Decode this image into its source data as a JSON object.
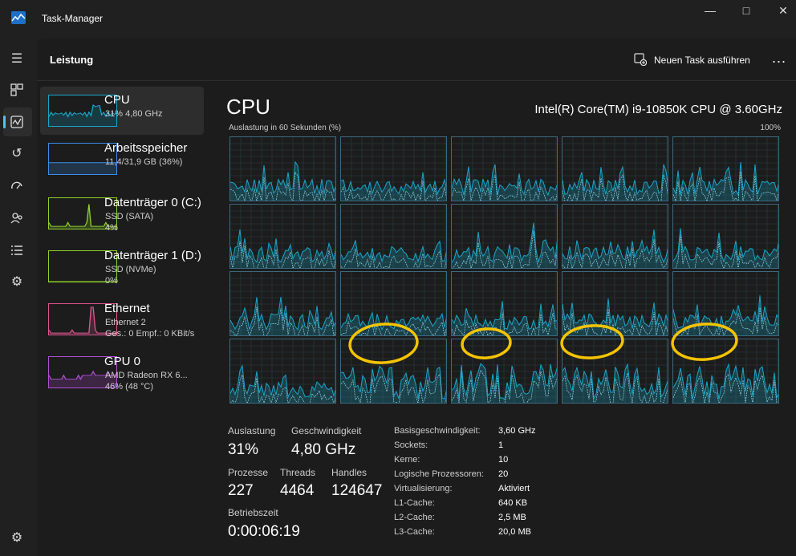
{
  "window": {
    "title": "Task-Manager",
    "controls": [
      "minimize",
      "maximize",
      "close"
    ]
  },
  "nav": {
    "items": [
      "menu-icon",
      "processes-icon",
      "performance-icon",
      "app-history-icon",
      "startup-apps-icon",
      "users-icon",
      "details-icon",
      "services-icon"
    ],
    "active": "performance-icon",
    "footer": "settings-icon",
    "accent": "#4cc2ff"
  },
  "header": {
    "title": "Leistung",
    "new_task_label": "Neuen Task ausführen",
    "more_label": "..."
  },
  "sidebar": {
    "items": [
      {
        "title": "CPU",
        "sub1": "31% 4,80 GHz",
        "sub2": "",
        "color": "#17a6c9"
      },
      {
        "title": "Arbeitsspeicher",
        "sub1": "11,4/31,9 GB (36%)",
        "sub2": "",
        "color": "#3c8ee8"
      },
      {
        "title": "Datenträger 0 (C:)",
        "sub1": "SSD (SATA)",
        "sub2": "4%",
        "color": "#8fd12a"
      },
      {
        "title": "Datenträger 1 (D:)",
        "sub1": "SSD (NVMe)",
        "sub2": "0%",
        "color": "#8fd12a"
      },
      {
        "title": "Ethernet",
        "sub1": "Ethernet 2",
        "sub2": "Ges.: 0 Empf.: 0 KBit/s",
        "color": "#e05590"
      },
      {
        "title": "GPU 0",
        "sub1": "AMD Radeon RX 6...",
        "sub2": "46% (48 °C)",
        "color": "#b14fd6"
      }
    ]
  },
  "cpu": {
    "title": "CPU",
    "model": "Intel(R) Core(TM) i9-10850K CPU @ 3.60GHz",
    "graph_caption": "Auslastung in 60 Sekunden (%)",
    "graph_max": "100%",
    "logical_processor_graphs": 20,
    "stats": {
      "auslastung_label": "Auslastung",
      "auslastung_value": "31%",
      "geschwindigkeit_label": "Geschwindigkeit",
      "geschwindigkeit_value": "4,80 GHz",
      "prozesse_label": "Prozesse",
      "prozesse_value": "227",
      "threads_label": "Threads",
      "threads_value": "4464",
      "handles_label": "Handles",
      "handles_value": "124647",
      "betriebszeit_label": "Betriebszeit",
      "betriebszeit_value": "0:00:06:19"
    },
    "specs": [
      {
        "label": "Basisgeschwindigkeit:",
        "value": "3,60 GHz"
      },
      {
        "label": "Sockets:",
        "value": "1"
      },
      {
        "label": "Kerne:",
        "value": "10"
      },
      {
        "label": "Logische Prozessoren:",
        "value": "20"
      },
      {
        "label": "Virtualisierung:",
        "value": "Aktiviert"
      },
      {
        "label": "L1-Cache:",
        "value": "640 KB"
      },
      {
        "label": "L2-Cache:",
        "value": "2,5 MB"
      },
      {
        "label": "L3-Cache:",
        "value": "20,0 MB"
      }
    ],
    "graph_color": "#17a6c9",
    "annotation_color": "#f5c400"
  }
}
